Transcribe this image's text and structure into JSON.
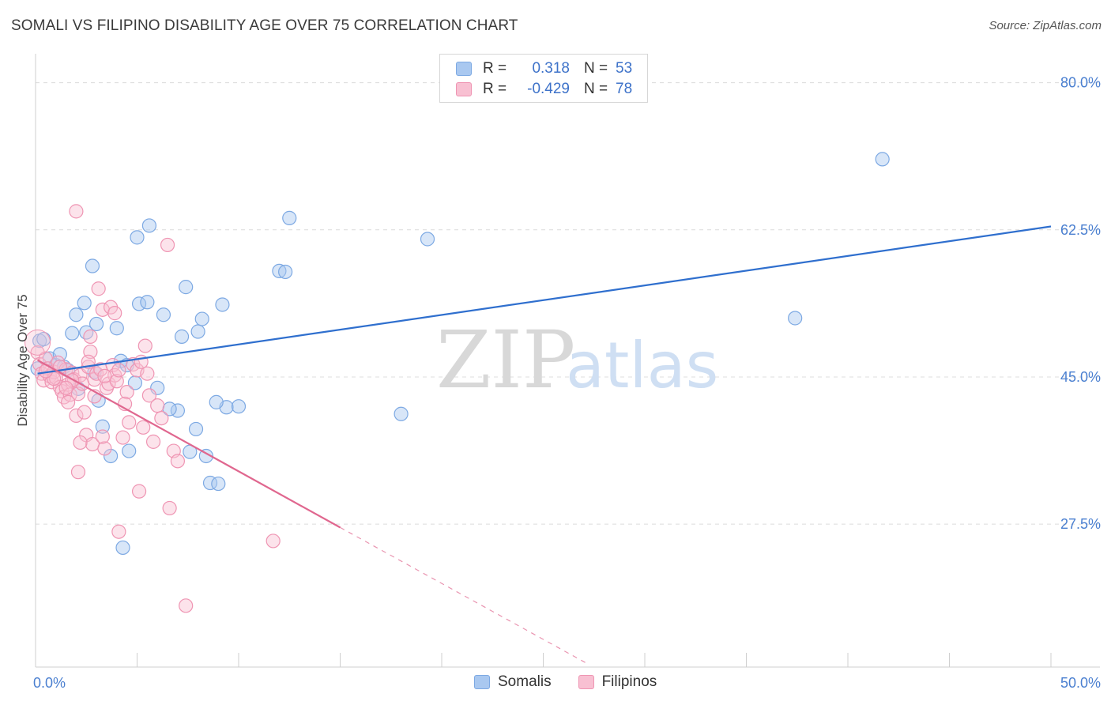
{
  "header": {
    "title": "SOMALI VS FILIPINO DISABILITY AGE OVER 75 CORRELATION CHART",
    "source": "Source: ZipAtlas.com"
  },
  "watermark": {
    "zip": "ZIP",
    "atlas": "atlas"
  },
  "legend": {
    "rows": [
      {
        "r_label": "R =",
        "r_value": "0.318",
        "n_label": "N =",
        "n_value": "53",
        "color": "#a9c8f0",
        "border": "#7da9e3"
      },
      {
        "r_label": "R =",
        "r_value": "-0.429",
        "n_label": "N =",
        "n_value": "78",
        "color": "#f8c0d2",
        "border": "#ef95b3"
      }
    ],
    "bottom": [
      {
        "name": "Somalis",
        "color": "#a9c8f0",
        "border": "#7da9e3"
      },
      {
        "name": "Filipinos",
        "color": "#f8c0d2",
        "border": "#ef95b3"
      }
    ]
  },
  "chart_data": {
    "type": "scatter",
    "title": "SOMALI VS FILIPINO DISABILITY AGE OVER 75 CORRELATION CHART",
    "xlabel": "",
    "ylabel": "Disability Age Over 75",
    "xlim": [
      0,
      50
    ],
    "ylim": [
      10.5,
      82.5
    ],
    "x_tick_labels": [
      "0.0%",
      "50.0%"
    ],
    "y_ticks": [
      27.5,
      45.0,
      62.5,
      80.0
    ],
    "y_tick_labels": [
      "27.5%",
      "45.0%",
      "62.5%",
      "80.0%"
    ],
    "grid": true,
    "series": [
      {
        "name": "Somalis",
        "color": "#7da9e3",
        "fill": "#a9c8f0",
        "line_color": "#2f6fce",
        "trend": {
          "x": [
            0.1,
            50.0
          ],
          "y": [
            45.4,
            62.9
          ]
        },
        "points": [
          [
            0.2,
            49.3
          ],
          [
            0.4,
            49.5
          ],
          [
            0.7,
            47.2
          ],
          [
            1.0,
            46.4
          ],
          [
            1.2,
            47.7
          ],
          [
            1.4,
            46.2
          ],
          [
            1.6,
            45.8
          ],
          [
            1.8,
            50.2
          ],
          [
            2.0,
            52.4
          ],
          [
            2.1,
            43.6
          ],
          [
            2.4,
            53.8
          ],
          [
            2.5,
            50.3
          ],
          [
            2.8,
            58.2
          ],
          [
            3.0,
            51.3
          ],
          [
            3.1,
            42.2
          ],
          [
            3.3,
            39.1
          ],
          [
            3.7,
            35.6
          ],
          [
            4.0,
            50.8
          ],
          [
            4.2,
            46.9
          ],
          [
            4.5,
            46.4
          ],
          [
            4.6,
            36.2
          ],
          [
            4.9,
            44.3
          ],
          [
            5.0,
            61.6
          ],
          [
            5.1,
            53.7
          ],
          [
            5.5,
            53.9
          ],
          [
            5.6,
            63.0
          ],
          [
            6.0,
            43.7
          ],
          [
            6.3,
            52.4
          ],
          [
            7.0,
            41.0
          ],
          [
            7.2,
            49.8
          ],
          [
            7.4,
            55.7
          ],
          [
            7.6,
            36.1
          ],
          [
            7.9,
            38.8
          ],
          [
            8.0,
            50.4
          ],
          [
            8.2,
            51.9
          ],
          [
            8.4,
            35.6
          ],
          [
            8.6,
            32.4
          ],
          [
            9.0,
            32.3
          ],
          [
            9.2,
            53.6
          ],
          [
            9.4,
            41.4
          ],
          [
            10.0,
            41.5
          ],
          [
            12.0,
            57.6
          ],
          [
            12.3,
            57.5
          ],
          [
            12.5,
            63.9
          ],
          [
            18.0,
            40.6
          ],
          [
            19.3,
            61.4
          ],
          [
            37.4,
            52.0
          ],
          [
            41.7,
            70.9
          ],
          [
            4.3,
            24.7
          ],
          [
            0.1,
            46.0
          ],
          [
            2.9,
            45.6
          ],
          [
            6.6,
            41.2
          ],
          [
            8.9,
            42.0
          ]
        ]
      },
      {
        "name": "Filipinos",
        "color": "#ef95b3",
        "fill": "#f8c0d2",
        "line_color": "#e0678f",
        "trend": {
          "x": [
            0.1,
            15.0
          ],
          "y": [
            47.0,
            27.1
          ]
        },
        "trend_dashed": {
          "x": [
            15.0,
            27.1
          ],
          "y": [
            27.1,
            11.0
          ]
        },
        "points": [
          [
            0.1,
            47.9
          ],
          [
            0.2,
            46.5
          ],
          [
            0.3,
            45.4
          ],
          [
            0.4,
            44.6
          ],
          [
            0.5,
            47.2
          ],
          [
            0.6,
            46.0
          ],
          [
            0.7,
            45.1
          ],
          [
            0.8,
            44.4
          ],
          [
            0.9,
            45.6
          ],
          [
            1.0,
            44.9
          ],
          [
            1.1,
            46.7
          ],
          [
            1.2,
            43.8
          ],
          [
            1.3,
            43.3
          ],
          [
            1.4,
            42.6
          ],
          [
            1.5,
            45.9
          ],
          [
            1.6,
            44.1
          ],
          [
            1.7,
            42.9
          ],
          [
            1.8,
            45.5
          ],
          [
            1.9,
            44.7
          ],
          [
            2.0,
            40.4
          ],
          [
            2.1,
            43.0
          ],
          [
            2.2,
            45.2
          ],
          [
            2.3,
            44.2
          ],
          [
            2.4,
            40.8
          ],
          [
            2.5,
            38.1
          ],
          [
            2.6,
            46.2
          ],
          [
            2.7,
            48.0
          ],
          [
            2.8,
            37.0
          ],
          [
            2.9,
            44.7
          ],
          [
            3.0,
            45.4
          ],
          [
            3.1,
            55.5
          ],
          [
            3.2,
            45.9
          ],
          [
            3.3,
            53.0
          ],
          [
            3.4,
            36.5
          ],
          [
            3.5,
            43.7
          ],
          [
            3.6,
            44.2
          ],
          [
            3.7,
            53.3
          ],
          [
            3.8,
            46.4
          ],
          [
            3.9,
            45.2
          ],
          [
            4.0,
            44.5
          ],
          [
            4.1,
            45.8
          ],
          [
            4.3,
            37.8
          ],
          [
            4.5,
            43.2
          ],
          [
            4.6,
            39.6
          ],
          [
            4.8,
            46.5
          ],
          [
            5.0,
            45.8
          ],
          [
            5.2,
            46.8
          ],
          [
            5.4,
            48.7
          ],
          [
            5.6,
            42.8
          ],
          [
            5.8,
            37.3
          ],
          [
            6.0,
            41.6
          ],
          [
            6.2,
            40.1
          ],
          [
            6.5,
            60.7
          ],
          [
            6.8,
            36.2
          ],
          [
            7.0,
            35.0
          ],
          [
            7.4,
            17.8
          ],
          [
            2.0,
            64.7
          ],
          [
            2.1,
            33.7
          ],
          [
            1.6,
            42.0
          ],
          [
            2.7,
            49.8
          ],
          [
            3.3,
            37.9
          ],
          [
            5.1,
            31.4
          ],
          [
            6.6,
            29.4
          ],
          [
            11.7,
            25.5
          ],
          [
            4.1,
            26.6
          ],
          [
            5.5,
            45.4
          ],
          [
            1.8,
            44.6
          ],
          [
            2.6,
            46.8
          ],
          [
            3.4,
            45.1
          ],
          [
            1.2,
            46.2
          ],
          [
            0.9,
            44.8
          ],
          [
            4.4,
            41.8
          ],
          [
            2.2,
            37.2
          ],
          [
            3.9,
            52.6
          ],
          [
            5.3,
            39.0
          ],
          [
            0.5,
            45.7
          ],
          [
            1.5,
            43.7
          ],
          [
            2.9,
            42.7
          ]
        ]
      }
    ]
  }
}
